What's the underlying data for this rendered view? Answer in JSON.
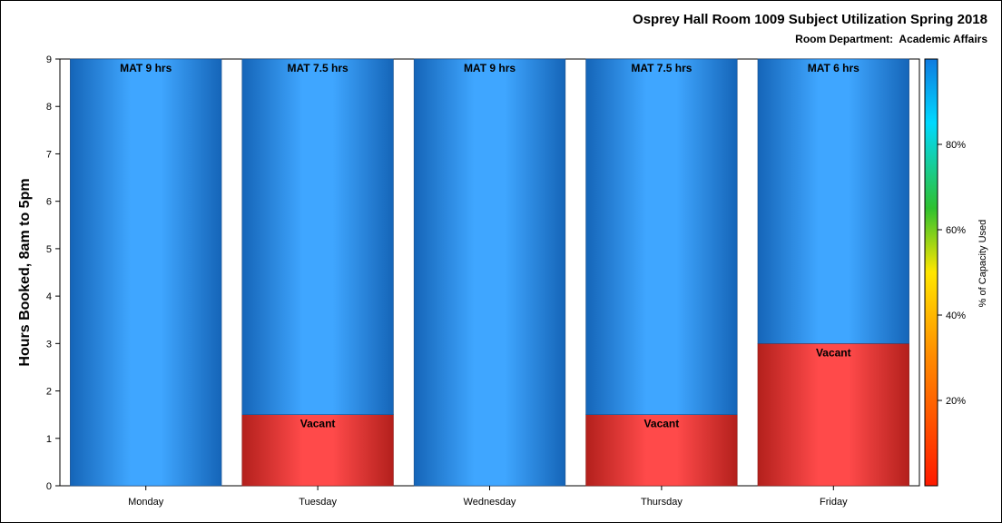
{
  "chart_data": {
    "type": "bar",
    "stacked": true,
    "title": "Osprey Hall Room 1009 Subject Utilization Spring 2018",
    "subtitle": "Room Department:  Academic Affairs",
    "ylabel": "Hours Booked, 8am to 5pm",
    "xlabel": "",
    "ylim": [
      0,
      9
    ],
    "yticks": [
      0,
      1,
      2,
      3,
      4,
      5,
      6,
      7,
      8,
      9
    ],
    "categories": [
      "Monday",
      "Tuesday",
      "Wednesday",
      "Thursday",
      "Friday"
    ],
    "series": [
      {
        "name": "Vacant",
        "values": [
          0,
          1.5,
          0,
          1.5,
          3
        ],
        "labels": [
          "",
          "Vacant",
          "",
          "Vacant",
          "Vacant"
        ],
        "color": "#ff4a4a"
      },
      {
        "name": "MAT",
        "values": [
          9,
          7.5,
          9,
          7.5,
          6
        ],
        "labels": [
          "MAT 9 hrs",
          "MAT 7.5 hrs",
          "MAT 9 hrs",
          "MAT 7.5 hrs",
          "MAT 6 hrs"
        ],
        "color": "#3fa6ff"
      }
    ],
    "colorbar": {
      "label": "% of Capacity Used",
      "ticks": [
        "20%",
        "40%",
        "60%",
        "80%"
      ],
      "tick_values": [
        20,
        40,
        60,
        80
      ],
      "range": [
        0,
        100
      ],
      "colors": [
        "#ff1a00",
        "#ff8a00",
        "#ffe600",
        "#2fc12f",
        "#00d9ff",
        "#0f7be0"
      ]
    },
    "grid": false,
    "legend": "colorbar-right"
  }
}
